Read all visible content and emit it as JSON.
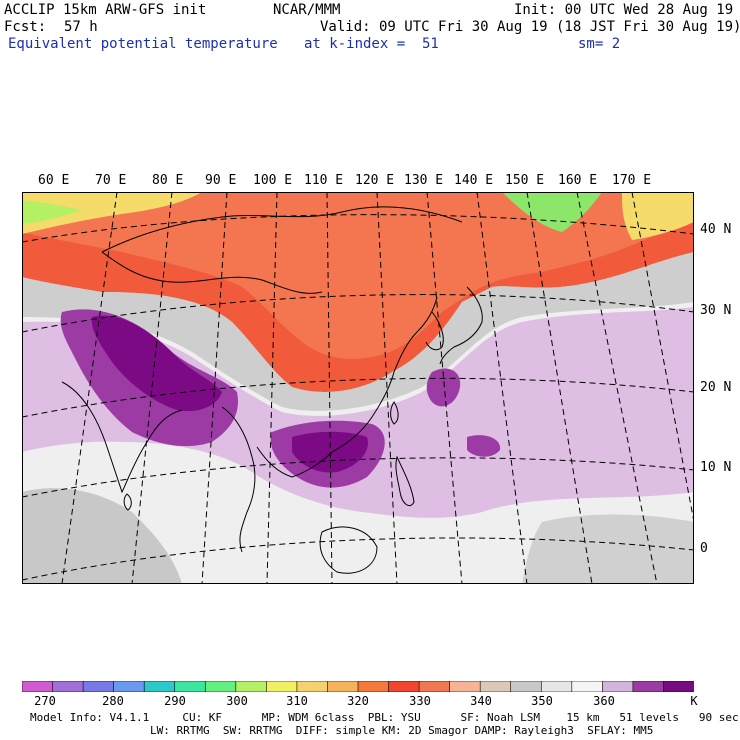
{
  "header": {
    "model": "ACCLIP 15km ARW-GFS init",
    "center": "NCAR/MMM",
    "init": "Init: 00 UTC Wed 28 Aug 19",
    "fcst_label": "Fcst:",
    "fcst_value": "57 h",
    "valid": "Valid: 09 UTC Fri 30 Aug 19 (18 JST Fri 30 Aug 19)",
    "field": "Equivalent potential temperature",
    "level": "at k-index =  51",
    "smooth": "sm= 2"
  },
  "map": {
    "lon_labels": [
      "60 E",
      "70 E",
      "80 E",
      "90 E",
      "100 E",
      "110 E",
      "120 E",
      "130 E",
      "140 E",
      "150 E",
      "160 E",
      "170 E"
    ],
    "lat_labels": [
      "40 N",
      "30 N",
      "20 N",
      "10 N",
      "0"
    ],
    "colors": {
      "dark_purple": "#7d0a85",
      "purple": "#9c3ba4",
      "light_purple": "#dcb8e0",
      "pale": "#efefef",
      "gray": "#c8c8c8",
      "warm_red": "#f25a3c",
      "orange": "#f59a6a",
      "yellow": "#f5dc6a",
      "green": "#8ce66a"
    }
  },
  "colorbar": {
    "colors": [
      "#d05ad0",
      "#a070d8",
      "#7878e6",
      "#6a9af0",
      "#2ec8c8",
      "#3ce6a0",
      "#64f080",
      "#b4f064",
      "#f0f064",
      "#f5d26e",
      "#f5b45a",
      "#f5783c",
      "#f04632",
      "#f07850",
      "#f5b496",
      "#dcc8b4",
      "#c8c8c8",
      "#e6e6e6",
      "#f5f5f5",
      "#d2b4dc",
      "#9b3ca5",
      "#780a82"
    ],
    "ticks": [
      "270",
      "280",
      "290",
      "300",
      "310",
      "320",
      "330",
      "340",
      "350",
      "360"
    ],
    "unit": "K"
  },
  "footer": {
    "line1": "Model Info: V4.1.1     CU: KF      MP: WDM 6class  PBL: YSU      SF: Noah LSM    15 km   51 levels   90 sec",
    "line2": "LW: RRTMG  SW: RRTMG  DIFF: simple KM: 2D Smagor DAMP: Rayleigh3  SFLAY: MM5"
  }
}
